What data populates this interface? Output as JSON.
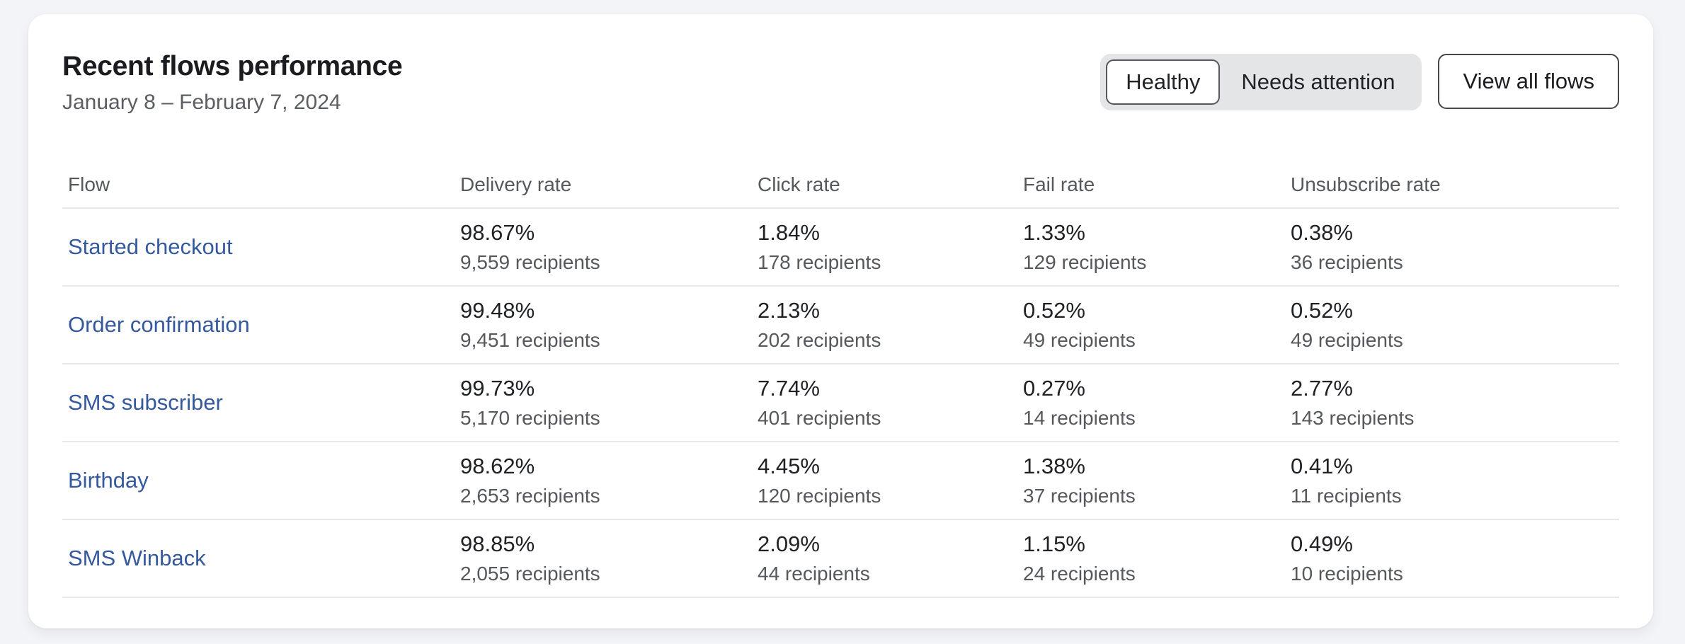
{
  "card": {
    "title": "Recent flows performance",
    "date_range": "January 8 – February 7, 2024",
    "filters": {
      "healthy_label": "Healthy",
      "needs_attention_label": "Needs attention",
      "selected": "Healthy"
    },
    "view_all_label": "View all flows"
  },
  "table": {
    "columns": {
      "flow": "Flow",
      "delivery": "Delivery rate",
      "click": "Click rate",
      "fail": "Fail rate",
      "unsubscribe": "Unsubscribe rate"
    },
    "rows": [
      {
        "flow": "Started checkout",
        "delivery_rate": "98.67%",
        "delivery_recipients": "9,559 recipients",
        "click_rate": "1.84%",
        "click_recipients": "178 recipients",
        "fail_rate": "1.33%",
        "fail_recipients": "129 recipients",
        "unsubscribe_rate": "0.38%",
        "unsubscribe_recipients": "36 recipients"
      },
      {
        "flow": "Order confirmation",
        "delivery_rate": "99.48%",
        "delivery_recipients": "9,451 recipients",
        "click_rate": "2.13%",
        "click_recipients": "202 recipients",
        "fail_rate": "0.52%",
        "fail_recipients": "49 recipients",
        "unsubscribe_rate": "0.52%",
        "unsubscribe_recipients": "49 recipients"
      },
      {
        "flow": "SMS subscriber",
        "delivery_rate": "99.73%",
        "delivery_recipients": "5,170 recipients",
        "click_rate": "7.74%",
        "click_recipients": "401 recipients",
        "fail_rate": "0.27%",
        "fail_recipients": "14 recipients",
        "unsubscribe_rate": "2.77%",
        "unsubscribe_recipients": "143 recipients"
      },
      {
        "flow": "Birthday",
        "delivery_rate": "98.62%",
        "delivery_recipients": "2,653 recipients",
        "click_rate": "4.45%",
        "click_recipients": "120 recipients",
        "fail_rate": "1.38%",
        "fail_recipients": "37 recipients",
        "unsubscribe_rate": "0.41%",
        "unsubscribe_recipients": "11 recipients"
      },
      {
        "flow": "SMS Winback",
        "delivery_rate": "98.85%",
        "delivery_recipients": "2,055 recipients",
        "click_rate": "2.09%",
        "click_recipients": "44 recipients",
        "fail_rate": "1.15%",
        "fail_recipients": "24 recipients",
        "unsubscribe_rate": "0.49%",
        "unsubscribe_recipients": "10 recipients"
      }
    ]
  },
  "colors": {
    "page_background": "#f3f4f7",
    "card_background": "#ffffff",
    "link_blue": "#35599e",
    "divider": "#e7e8ea",
    "toggle_background": "#e4e5e7"
  }
}
